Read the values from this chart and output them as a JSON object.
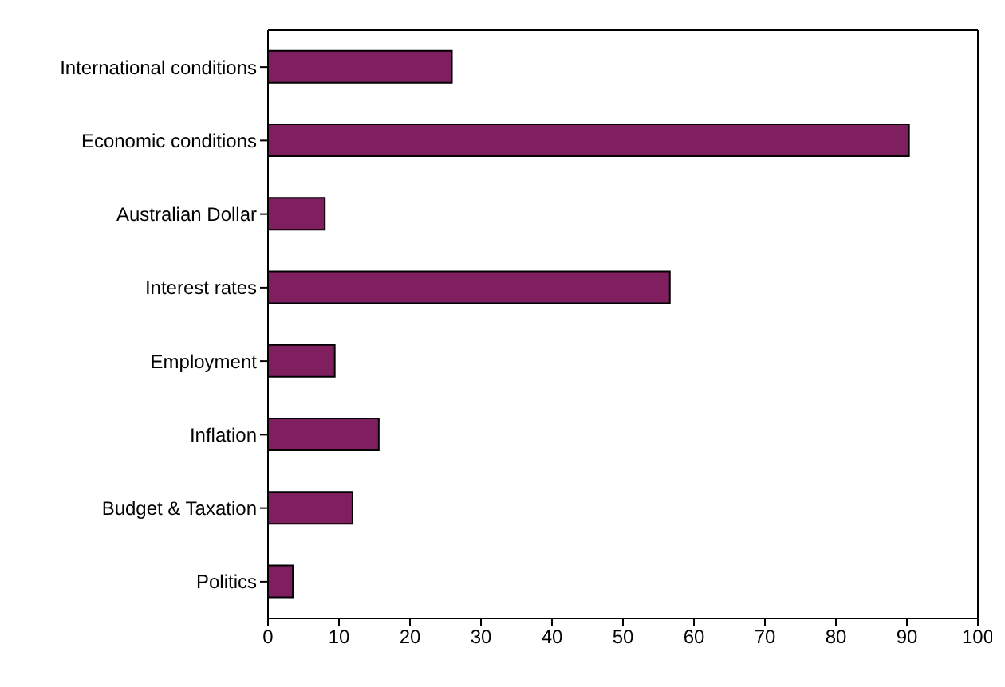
{
  "chart_data": {
    "type": "bar",
    "orientation": "horizontal",
    "categories": [
      "International conditions",
      "Economic conditions",
      "Australian Dollar",
      "Interest rates",
      "Employment",
      "Inflation",
      "Budget & Taxation",
      "Politics"
    ],
    "values": [
      25.9,
      90.3,
      8.0,
      56.6,
      9.4,
      15.6,
      11.9,
      3.5
    ],
    "color": "#7f1f5f",
    "xlim": [
      0,
      100
    ],
    "xticks": [
      0,
      10,
      20,
      30,
      40,
      50,
      60,
      70,
      80,
      90,
      100
    ],
    "grid": false
  }
}
